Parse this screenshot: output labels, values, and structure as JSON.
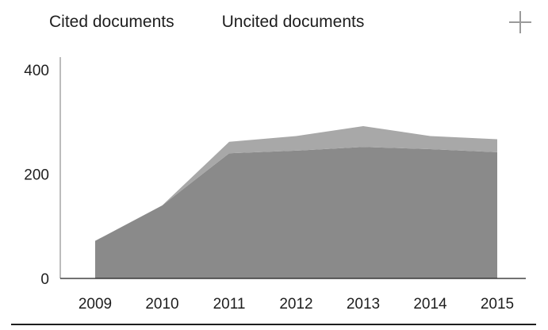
{
  "legend": {
    "items": [
      {
        "label": "Cited documents",
        "color": "#8a8a8a"
      },
      {
        "label": "Uncited documents",
        "color": "#a8a8a8"
      }
    ],
    "add_icon": "plus-icon"
  },
  "chart_data": {
    "type": "area",
    "stacked": true,
    "x": [
      "2009",
      "2010",
      "2011",
      "2012",
      "2013",
      "2014",
      "2015"
    ],
    "series": [
      {
        "name": "Cited documents",
        "color": "#8a8a8a",
        "values": [
          72,
          140,
          240,
          245,
          252,
          248,
          242
        ]
      },
      {
        "name": "Uncited documents",
        "color": "#a8a8a8",
        "values": [
          0,
          0,
          22,
          28,
          40,
          25,
          25
        ]
      }
    ],
    "ylim": [
      0,
      400
    ],
    "yticks": [
      0,
      200,
      400
    ],
    "grid": false,
    "legend_position": "top"
  }
}
